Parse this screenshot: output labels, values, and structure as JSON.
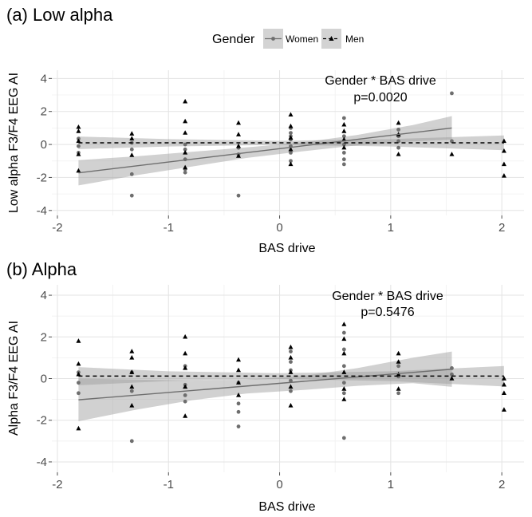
{
  "legend": {
    "title": "Gender",
    "items": [
      {
        "label": "Women",
        "color": "#6e6e6e",
        "line": "solid",
        "shape": "circle"
      },
      {
        "label": "Men",
        "color": "#000000",
        "line": "dashed",
        "shape": "triangle"
      }
    ]
  },
  "chart_data": [
    {
      "type": "scatter",
      "panel_title": "(a) Low alpha",
      "xlabel": "BAS drive",
      "ylabel": "Low alpha F3/F4 EEG AI",
      "xlim": [
        -2.05,
        2.2
      ],
      "ylim": [
        -4.3,
        4.5
      ],
      "xticks": [
        -2,
        -1,
        0,
        1,
        2
      ],
      "yticks": [
        -4,
        -2,
        0,
        2,
        4
      ],
      "grid": true,
      "legend_position": "top",
      "annotation": {
        "line1": "Gender * BAS drive",
        "line2": "p=0.0020",
        "x": 0.6,
        "y1": 3.9,
        "y2": 2.9
      },
      "series": [
        {
          "name": "Women",
          "fit": {
            "x": [
              -1.81,
              1.55
            ],
            "y": [
              -1.72,
              1.0
            ]
          },
          "band": {
            "x": [
              -1.81,
              -1.3,
              -0.8,
              -0.3,
              0.2,
              0.7,
              1.2,
              1.55
            ],
            "upper": [
              -0.95,
              -0.72,
              -0.45,
              -0.18,
              0.12,
              0.58,
              1.18,
              1.72
            ],
            "lower": [
              -2.48,
              -1.88,
              -1.35,
              -0.82,
              -0.42,
              -0.05,
              0.18,
              0.3
            ]
          },
          "points": [
            [
              -1.81,
              -0.1
            ],
            [
              -1.81,
              0.35
            ],
            [
              -1.81,
              -0.5
            ],
            [
              -1.33,
              -3.1
            ],
            [
              -1.33,
              -1.8
            ],
            [
              -1.33,
              -0.3
            ],
            [
              -1.33,
              0.1
            ],
            [
              -0.85,
              -1.5
            ],
            [
              -0.85,
              -0.9
            ],
            [
              -0.85,
              -0.3
            ],
            [
              -0.85,
              0.0
            ],
            [
              -0.85,
              -1.7
            ],
            [
              -0.37,
              -3.1
            ],
            [
              -0.37,
              -0.6
            ],
            [
              -0.37,
              -0.2
            ],
            [
              0.1,
              -0.5
            ],
            [
              0.1,
              -0.1
            ],
            [
              0.1,
              0.3
            ],
            [
              0.1,
              0.7
            ],
            [
              0.1,
              1.0
            ],
            [
              0.1,
              -1.0
            ],
            [
              0.1,
              0.5
            ],
            [
              0.58,
              1.6
            ],
            [
              0.58,
              0.5
            ],
            [
              0.58,
              0.0
            ],
            [
              0.58,
              -0.5
            ],
            [
              0.58,
              -0.9
            ],
            [
              0.58,
              -1.2
            ],
            [
              1.07,
              0.9
            ],
            [
              1.07,
              0.5
            ],
            [
              1.07,
              0.2
            ],
            [
              1.07,
              -0.2
            ],
            [
              1.55,
              3.1
            ],
            [
              1.55,
              0.2
            ]
          ]
        },
        {
          "name": "Men",
          "fit": {
            "x": [
              -1.81,
              2.02
            ],
            "y": [
              0.1,
              0.1
            ]
          },
          "band": {
            "x": [
              -1.81,
              -1.0,
              0.0,
              1.0,
              2.02
            ],
            "upper": [
              0.48,
              0.32,
              0.22,
              0.32,
              0.55
            ],
            "lower": [
              -0.28,
              -0.12,
              -0.02,
              -0.12,
              -0.35
            ]
          },
          "points": [
            [
              -1.81,
              1.05
            ],
            [
              -1.81,
              0.8
            ],
            [
              -1.81,
              0.2
            ],
            [
              -1.81,
              -0.6
            ],
            [
              -1.81,
              -1.6
            ],
            [
              -1.33,
              0.65
            ],
            [
              -1.33,
              0.35
            ],
            [
              -1.33,
              -0.65
            ],
            [
              -0.85,
              2.6
            ],
            [
              -0.85,
              1.4
            ],
            [
              -0.85,
              0.7
            ],
            [
              -0.85,
              -0.5
            ],
            [
              -0.85,
              -1.4
            ],
            [
              -0.37,
              1.3
            ],
            [
              -0.37,
              0.6
            ],
            [
              -0.37,
              -0.1
            ],
            [
              -0.37,
              -0.7
            ],
            [
              0.1,
              1.8
            ],
            [
              0.1,
              1.1
            ],
            [
              0.1,
              0.4
            ],
            [
              0.1,
              -0.3
            ],
            [
              0.1,
              -1.2
            ],
            [
              0.58,
              1.2
            ],
            [
              0.58,
              0.8
            ],
            [
              0.58,
              0.3
            ],
            [
              0.58,
              -0.2
            ],
            [
              1.07,
              1.3
            ],
            [
              1.07,
              0.6
            ],
            [
              1.07,
              -0.6
            ],
            [
              1.55,
              -0.6
            ],
            [
              2.02,
              0.2
            ],
            [
              2.02,
              -0.4
            ],
            [
              2.02,
              -1.2
            ],
            [
              2.02,
              -1.9
            ]
          ]
        }
      ]
    },
    {
      "type": "scatter",
      "panel_title": "(b) Alpha",
      "xlabel": "BAS drive",
      "ylabel": "Alpha F3/F4 EEG AI",
      "xlim": [
        -2.05,
        2.2
      ],
      "ylim": [
        -4.5,
        4.5
      ],
      "xticks": [
        -2,
        -1,
        0,
        1,
        2
      ],
      "yticks": [
        -4,
        -2,
        0,
        2,
        4
      ],
      "grid": true,
      "annotation": {
        "line1": "Gender * BAS drive",
        "line2": "p=0.5476",
        "x": 0.6,
        "y1": 3.8,
        "y2": 2.8
      },
      "series": [
        {
          "name": "Women",
          "fit": {
            "x": [
              -1.81,
              1.55
            ],
            "y": [
              -1.02,
              0.45
            ]
          },
          "band": {
            "x": [
              -1.81,
              -1.3,
              -0.8,
              -0.3,
              0.2,
              0.7,
              1.2,
              1.55
            ],
            "upper": [
              0.0,
              -0.05,
              -0.1,
              -0.05,
              0.12,
              0.5,
              1.0,
              1.3
            ],
            "lower": [
              -2.05,
              -1.5,
              -1.05,
              -0.72,
              -0.55,
              -0.35,
              -0.22,
              -0.4
            ]
          },
          "points": [
            [
              -1.81,
              -0.7
            ],
            [
              -1.81,
              -0.2
            ],
            [
              -1.81,
              0.3
            ],
            [
              -1.33,
              -3.0
            ],
            [
              -1.33,
              -0.6
            ],
            [
              -1.33,
              0.3
            ],
            [
              -0.85,
              -0.3
            ],
            [
              -0.85,
              -0.8
            ],
            [
              -0.85,
              0.6
            ],
            [
              -0.85,
              -1.1
            ],
            [
              -0.37,
              -2.3
            ],
            [
              -0.37,
              -1.6
            ],
            [
              -0.37,
              -1.2
            ],
            [
              -0.37,
              -0.2
            ],
            [
              0.1,
              1.3
            ],
            [
              0.1,
              0.8
            ],
            [
              0.1,
              0.4
            ],
            [
              0.1,
              -0.1
            ],
            [
              0.1,
              -0.6
            ],
            [
              0.58,
              2.2
            ],
            [
              0.58,
              1.4
            ],
            [
              0.58,
              0.6
            ],
            [
              0.58,
              -0.2
            ],
            [
              0.58,
              -0.7
            ],
            [
              0.58,
              -2.85
            ],
            [
              1.07,
              0.6
            ],
            [
              1.07,
              0.1
            ],
            [
              1.07,
              -0.7
            ],
            [
              1.55,
              0.5
            ],
            [
              1.55,
              0.2
            ]
          ]
        },
        {
          "name": "Men",
          "fit": {
            "x": [
              -1.81,
              2.02
            ],
            "y": [
              0.12,
              0.12
            ]
          },
          "band": {
            "x": [
              -1.81,
              -1.0,
              0.0,
              1.0,
              2.02
            ],
            "upper": [
              0.55,
              0.35,
              0.26,
              0.35,
              0.6
            ],
            "lower": [
              -0.32,
              -0.12,
              -0.02,
              -0.12,
              -0.38
            ]
          },
          "points": [
            [
              -1.81,
              1.8
            ],
            [
              -1.81,
              0.7
            ],
            [
              -1.81,
              0.2
            ],
            [
              -1.81,
              -2.4
            ],
            [
              -1.33,
              1.3
            ],
            [
              -1.33,
              1.0
            ],
            [
              -1.33,
              0.3
            ],
            [
              -1.33,
              -0.4
            ],
            [
              -1.33,
              -1.3
            ],
            [
              -0.85,
              2.0
            ],
            [
              -0.85,
              1.2
            ],
            [
              -0.85,
              0.5
            ],
            [
              -0.85,
              -0.4
            ],
            [
              -0.85,
              -1.8
            ],
            [
              -0.37,
              0.9
            ],
            [
              -0.37,
              0.4
            ],
            [
              -0.37,
              -0.2
            ],
            [
              -0.37,
              -0.8
            ],
            [
              0.1,
              1.5
            ],
            [
              0.1,
              1.0
            ],
            [
              0.1,
              0.3
            ],
            [
              0.1,
              -0.4
            ],
            [
              0.1,
              -1.3
            ],
            [
              0.58,
              2.6
            ],
            [
              0.58,
              1.9
            ],
            [
              0.58,
              1.2
            ],
            [
              0.58,
              0.3
            ],
            [
              0.58,
              -0.5
            ],
            [
              0.58,
              -1.0
            ],
            [
              1.07,
              1.2
            ],
            [
              1.07,
              0.8
            ],
            [
              1.07,
              0.2
            ],
            [
              1.07,
              -0.5
            ],
            [
              1.55,
              0.0
            ],
            [
              2.02,
              0.0
            ],
            [
              2.02,
              -0.3
            ],
            [
              2.02,
              -0.7
            ],
            [
              2.02,
              -1.5
            ]
          ]
        }
      ]
    }
  ]
}
